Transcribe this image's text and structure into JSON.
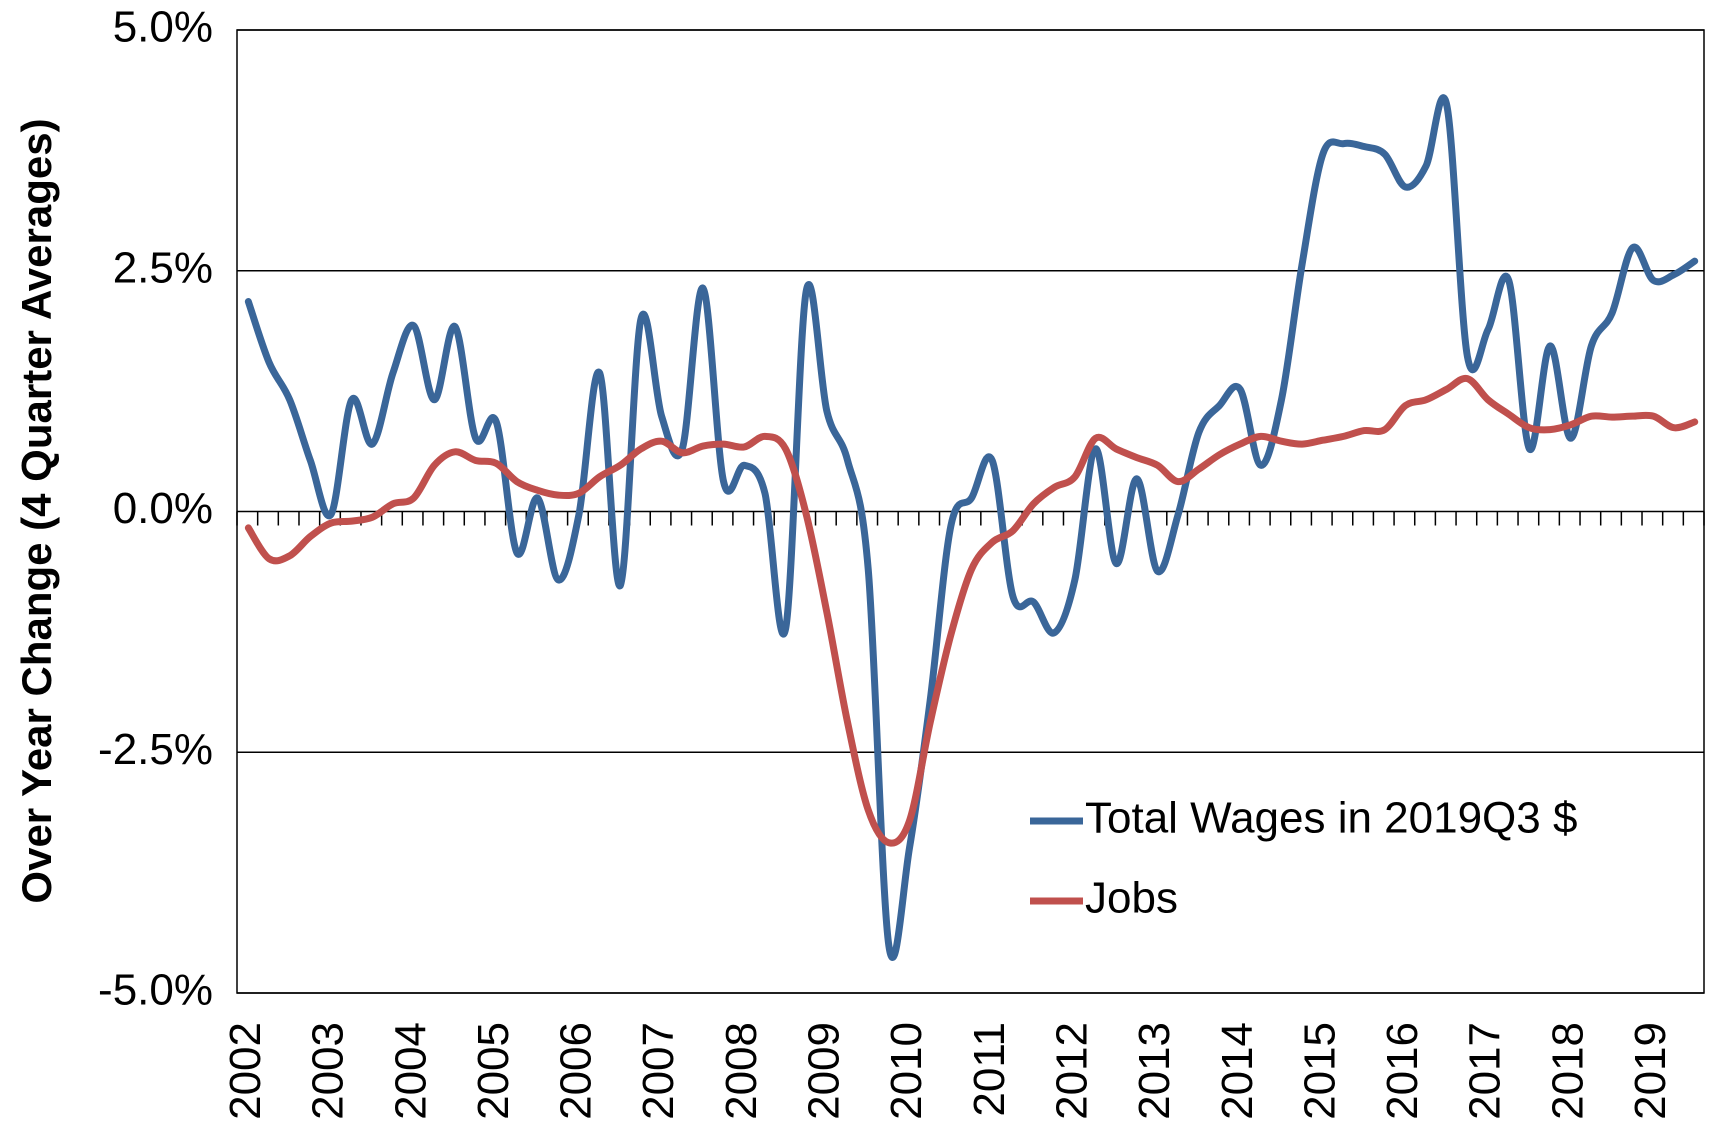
{
  "chart_data": {
    "type": "line",
    "y_label": "Over Year Change (4 Quarter Averages)",
    "categories": [
      "2002",
      null,
      null,
      null,
      "2003",
      null,
      null,
      null,
      "2004",
      null,
      null,
      null,
      "2005",
      null,
      null,
      null,
      "2006",
      null,
      null,
      null,
      "2007",
      null,
      null,
      null,
      "2008",
      null,
      null,
      null,
      "2009",
      null,
      null,
      null,
      "2010",
      null,
      null,
      null,
      "2011",
      null,
      null,
      null,
      "2012",
      null,
      null,
      null,
      "2013",
      null,
      null,
      null,
      "2014",
      null,
      null,
      null,
      "2015",
      null,
      null,
      null,
      "2016",
      null,
      null,
      null,
      "2017",
      null,
      null,
      null,
      "2018",
      null,
      null,
      null,
      "2019",
      null,
      null
    ],
    "series": [
      {
        "name": "Total Wages in 2019Q3 $",
        "color": "#3a6699",
        "values": [
          2.18,
          1.55,
          1.16,
          0.53,
          -0.03,
          1.16,
          0.7,
          1.44,
          1.93,
          1.16,
          1.92,
          0.76,
          0.93,
          -0.43,
          0.14,
          -0.71,
          -0.03,
          1.44,
          -0.77,
          2.0,
          0.99,
          0.65,
          2.32,
          0.31,
          0.48,
          0.19,
          -1.22,
          2.29,
          1.04,
          0.53,
          -0.6,
          -4.51,
          -3.49,
          -1.96,
          -0.15,
          0.14,
          0.53,
          -0.88,
          -0.94,
          -1.26,
          -0.71,
          0.65,
          -0.54,
          0.34,
          -0.62,
          -0.03,
          0.82,
          1.1,
          1.27,
          0.48,
          1.16,
          2.57,
          3.71,
          3.82,
          3.79,
          3.71,
          3.37,
          3.59,
          4.22,
          1.61,
          1.89,
          2.4,
          0.65,
          1.72,
          0.76,
          1.72,
          2.06,
          2.74,
          2.4,
          2.46,
          2.6
        ]
      },
      {
        "name": "Jobs",
        "color": "#c0504d",
        "values": [
          -0.17,
          -0.49,
          -0.46,
          -0.26,
          -0.12,
          -0.1,
          -0.06,
          0.08,
          0.14,
          0.48,
          0.62,
          0.53,
          0.5,
          0.31,
          0.22,
          0.17,
          0.19,
          0.36,
          0.48,
          0.65,
          0.73,
          0.61,
          0.68,
          0.7,
          0.67,
          0.78,
          0.65,
          -0.03,
          -1.05,
          -2.19,
          -3.1,
          -3.44,
          -3.21,
          -2.19,
          -1.28,
          -0.6,
          -0.32,
          -0.2,
          0.08,
          0.25,
          0.36,
          0.76,
          0.65,
          0.56,
          0.48,
          0.31,
          0.44,
          0.59,
          0.7,
          0.78,
          0.73,
          0.7,
          0.74,
          0.78,
          0.84,
          0.85,
          1.1,
          1.16,
          1.27,
          1.38,
          1.16,
          1.01,
          0.87,
          0.85,
          0.9,
          0.99,
          0.98,
          0.99,
          0.99,
          0.87,
          0.93
        ]
      }
    ],
    "ylim": [
      -5,
      5
    ],
    "yticks": [
      {
        "value": -5,
        "label": "-5.0%"
      },
      {
        "value": -2.5,
        "label": "-2.5%"
      },
      {
        "value": 0,
        "label": "0.0%"
      },
      {
        "value": 2.5,
        "label": "2.5%"
      },
      {
        "value": 5,
        "label": "5.0%"
      }
    ],
    "grid": true,
    "legend": "lower right"
  }
}
